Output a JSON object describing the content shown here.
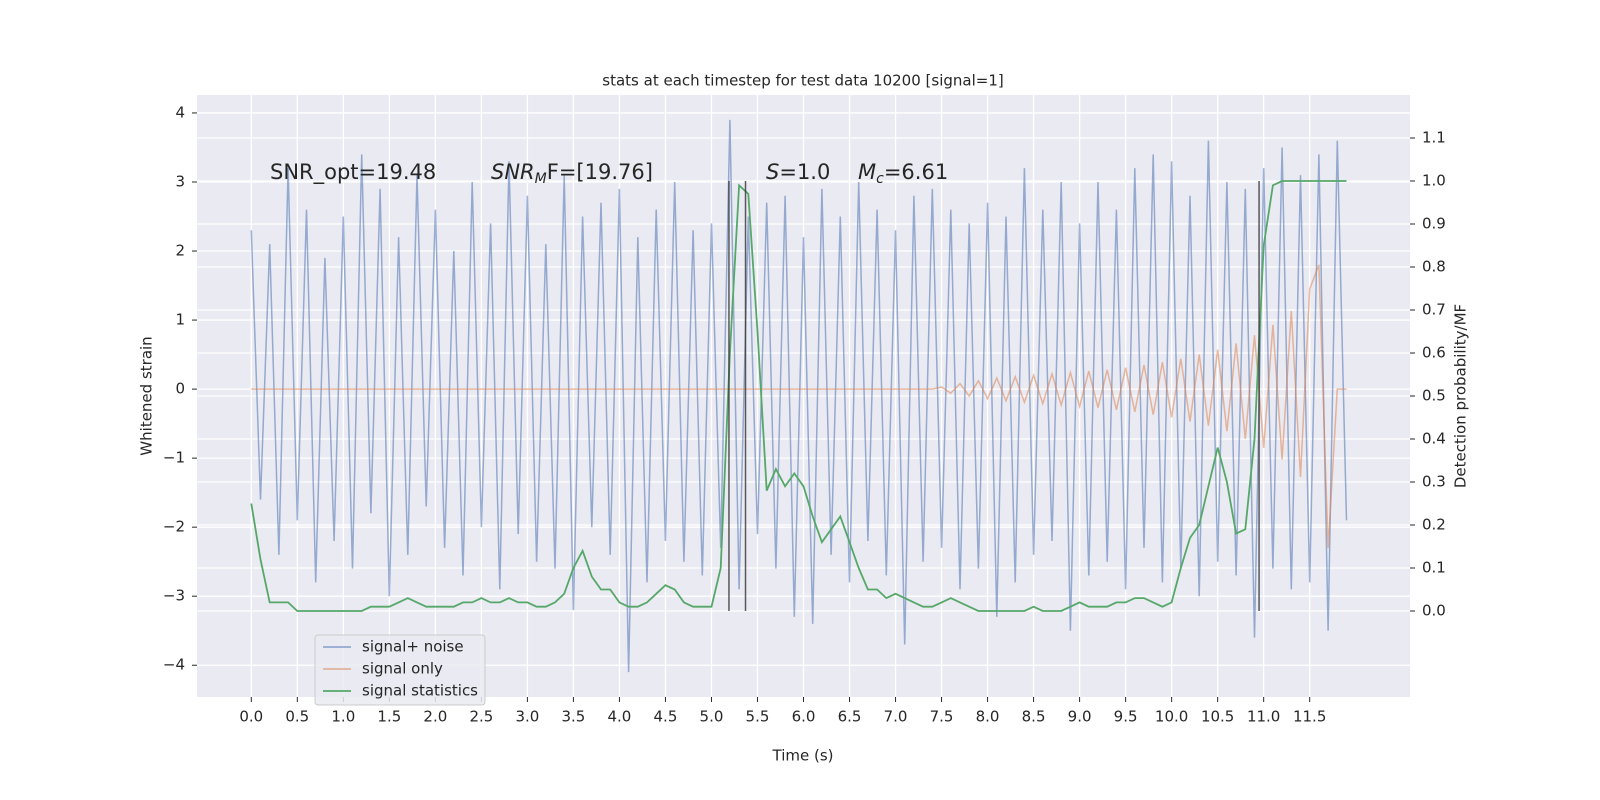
{
  "chart_data": {
    "type": "line",
    "title": "stats at each timestep for test data 10200 [signal=1]",
    "xlabel": "Time (s)",
    "ylabel": "Whitened strain",
    "y2label": "Detection probability/MF",
    "xlim": [
      -0.59,
      12.59
    ],
    "ylim": [
      -4.46,
      4.26
    ],
    "y2lim": [
      -0.2,
      1.2
    ],
    "xticks": [
      {
        "value": 0,
        "label": "0.0"
      },
      0.5,
      {
        "value": 1,
        "label": "1.0"
      },
      1.5,
      {
        "value": 2,
        "label": "2.0"
      },
      2.5,
      {
        "value": 3,
        "label": "3.0"
      },
      3.5,
      {
        "value": 4,
        "label": "4.0"
      },
      4.5,
      {
        "value": 5,
        "label": "5.0"
      },
      5.5,
      {
        "value": 6,
        "label": "6.0"
      },
      6.5,
      {
        "value": 7,
        "label": "7.0"
      },
      7.5,
      {
        "value": 8,
        "label": "8.0"
      },
      8.5,
      {
        "value": 9,
        "label": "9.0"
      },
      9.5,
      {
        "value": 10,
        "label": "10.0"
      },
      10.5,
      {
        "value": 11,
        "label": "11.0"
      },
      11.5
    ],
    "yticks": [
      {
        "value": -4,
        "label": "−4"
      },
      {
        "value": -3,
        "label": "−3"
      },
      {
        "value": -2,
        "label": "−2"
      },
      {
        "value": -1,
        "label": "−1"
      },
      0,
      1,
      2,
      3,
      4
    ],
    "y2ticks": [
      {
        "value": 0,
        "label": "0.0"
      },
      0.1,
      0.2,
      0.3,
      0.4,
      0.5,
      0.6,
      0.7,
      0.8,
      0.9,
      {
        "value": 1,
        "label": "1.0"
      },
      1.1
    ],
    "grid": true,
    "legend": "lower left",
    "annotations": [
      "SNR_opt=19.48",
      {
        "main": "SNR",
        "sub": "M",
        "tail": "F=[19.76]"
      },
      {
        "main": "S",
        "tail": "=1.0"
      },
      {
        "main": "M",
        "sub": "c",
        "tail": "=6.61"
      }
    ],
    "vlines": [
      5.19,
      5.37,
      10.95
    ],
    "vline_y2": [
      0,
      1
    ],
    "x": [
      0.0,
      0.1,
      0.2,
      0.3,
      0.4,
      0.5,
      0.6,
      0.7,
      0.8,
      0.9,
      1.0,
      1.1,
      1.2,
      1.3,
      1.4,
      1.5,
      1.6,
      1.7,
      1.8,
      1.9,
      2.0,
      2.1,
      2.2,
      2.3,
      2.4,
      2.5,
      2.6,
      2.7,
      2.8,
      2.9,
      3.0,
      3.1,
      3.2,
      3.3,
      3.4,
      3.5,
      3.6,
      3.7,
      3.8,
      3.9,
      4.0,
      4.1,
      4.2,
      4.3,
      4.4,
      4.5,
      4.6,
      4.7,
      4.8,
      4.9,
      5.0,
      5.1,
      5.2,
      5.3,
      5.4,
      5.5,
      5.6,
      5.7,
      5.8,
      5.9,
      6.0,
      6.1,
      6.2,
      6.3,
      6.4,
      6.5,
      6.6,
      6.7,
      6.8,
      6.9,
      7.0,
      7.1,
      7.2,
      7.3,
      7.4,
      7.5,
      7.6,
      7.7,
      7.8,
      7.9,
      8.0,
      8.1,
      8.2,
      8.3,
      8.4,
      8.5,
      8.6,
      8.7,
      8.8,
      8.9,
      9.0,
      9.1,
      9.2,
      9.3,
      9.4,
      9.5,
      9.6,
      9.7,
      9.8,
      9.9,
      10.0,
      10.1,
      10.2,
      10.3,
      10.4,
      10.5,
      10.6,
      10.7,
      10.8,
      10.9,
      11.0,
      11.1,
      11.2,
      11.3,
      11.4,
      11.5,
      11.6,
      11.7,
      11.8,
      11.9
    ],
    "series": [
      {
        "name": "signal+ noise",
        "color": "#4c72b0",
        "values": [
          2.3,
          -1.6,
          2.1,
          -2.4,
          3.2,
          -1.9,
          2.6,
          -2.8,
          1.9,
          -2.2,
          2.5,
          -2.6,
          3.4,
          -1.8,
          2.9,
          -3.0,
          2.2,
          -2.4,
          3.1,
          -1.7,
          2.6,
          -2.3,
          2.0,
          -2.7,
          3.0,
          -2.0,
          2.4,
          -2.9,
          3.3,
          -2.1,
          2.8,
          -2.5,
          2.1,
          -2.6,
          3.1,
          -3.2,
          2.5,
          -2.0,
          2.7,
          -2.4,
          2.9,
          -4.1,
          2.2,
          -2.8,
          2.6,
          -2.2,
          3.0,
          -2.5,
          2.3,
          -2.7,
          2.4,
          -2.3,
          3.9,
          -2.9,
          2.5,
          -2.1,
          2.7,
          -2.6,
          2.8,
          -3.3,
          2.2,
          -3.4,
          2.9,
          -2.4,
          2.5,
          -2.8,
          3.0,
          -2.2,
          2.6,
          -2.7,
          2.3,
          -3.7,
          2.8,
          -2.5,
          2.9,
          -2.3,
          2.6,
          -2.9,
          2.4,
          -2.6,
          2.7,
          -3.3,
          2.5,
          -2.8,
          3.2,
          -2.4,
          2.6,
          -2.2,
          3.0,
          -3.5,
          2.4,
          -2.7,
          3.0,
          -2.5,
          2.6,
          -2.9,
          3.2,
          -2.3,
          3.4,
          -2.8,
          3.3,
          -2.6,
          2.8,
          -3.0,
          3.6,
          -2.5,
          3.0,
          -2.7,
          2.9,
          -3.6,
          3.2,
          -2.6,
          3.5,
          -2.9,
          3.1,
          -2.8,
          3.4,
          -3.5,
          3.6,
          -1.9
        ]
      },
      {
        "name": "signal only",
        "color": "#dd8452",
        "values": [
          0,
          0,
          0,
          0,
          0,
          0,
          0,
          0,
          0,
          0,
          0,
          0,
          0,
          0,
          0,
          0,
          0,
          0,
          0,
          0,
          0,
          0,
          0,
          0,
          0,
          0,
          0,
          0,
          0,
          0,
          0,
          0,
          0,
          0,
          0,
          0,
          0,
          0,
          0,
          0,
          0,
          0,
          0,
          0,
          0,
          0,
          0,
          0,
          0,
          0,
          0,
          0,
          0,
          0,
          0,
          0,
          0,
          0,
          0,
          0,
          0,
          0,
          0,
          0,
          0,
          0,
          0,
          0,
          0,
          0,
          0,
          0,
          0,
          0,
          0,
          0.03,
          -0.06,
          0.08,
          -0.1,
          0.12,
          -0.14,
          0.16,
          -0.17,
          0.18,
          -0.19,
          0.2,
          -0.21,
          0.22,
          -0.23,
          0.24,
          -0.25,
          0.26,
          -0.27,
          0.28,
          -0.3,
          0.31,
          -0.33,
          0.35,
          -0.37,
          0.39,
          -0.41,
          0.44,
          -0.47,
          0.5,
          -0.53,
          0.57,
          -0.61,
          0.66,
          -0.72,
          0.78,
          -0.85,
          0.93,
          -1.02,
          1.13,
          -1.27,
          1.45,
          1.8,
          -2.3,
          0,
          0
        ]
      },
      {
        "name": "signal statistics",
        "color": "#55a868",
        "axis": "y2",
        "values": [
          0.25,
          0.12,
          0.02,
          0.02,
          0.02,
          0.0,
          0.0,
          0.0,
          0.0,
          0.0,
          0.0,
          0.0,
          0.0,
          0.01,
          0.01,
          0.01,
          0.02,
          0.03,
          0.02,
          0.01,
          0.01,
          0.01,
          0.01,
          0.02,
          0.02,
          0.03,
          0.02,
          0.02,
          0.03,
          0.02,
          0.02,
          0.01,
          0.01,
          0.02,
          0.04,
          0.1,
          0.14,
          0.08,
          0.05,
          0.05,
          0.02,
          0.01,
          0.01,
          0.02,
          0.04,
          0.06,
          0.05,
          0.02,
          0.01,
          0.01,
          0.01,
          0.1,
          0.6,
          0.99,
          0.97,
          0.65,
          0.28,
          0.33,
          0.29,
          0.32,
          0.29,
          0.22,
          0.16,
          0.19,
          0.22,
          0.16,
          0.1,
          0.05,
          0.05,
          0.03,
          0.04,
          0.03,
          0.02,
          0.01,
          0.01,
          0.02,
          0.03,
          0.02,
          0.01,
          0.0,
          0.0,
          0.0,
          0.0,
          0.0,
          0.0,
          0.01,
          0.0,
          0.0,
          0.0,
          0.01,
          0.02,
          0.01,
          0.01,
          0.01,
          0.02,
          0.02,
          0.03,
          0.03,
          0.02,
          0.01,
          0.02,
          0.1,
          0.17,
          0.2,
          0.29,
          0.38,
          0.3,
          0.18,
          0.19,
          0.4,
          0.85,
          0.99,
          1.0,
          1.0,
          1.0,
          1.0,
          1.0,
          1.0,
          1.0,
          1.0
        ]
      }
    ]
  }
}
